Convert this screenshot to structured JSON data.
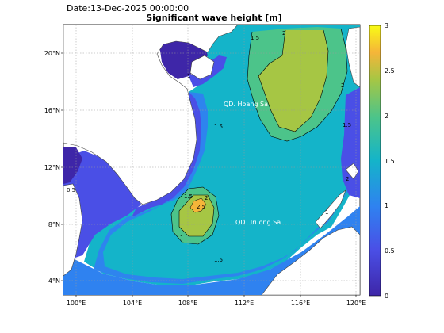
{
  "header": {
    "date": "Date:13-Dec-2025 00:00:00",
    "title": "Significant wave height [m]"
  },
  "map": {
    "lat_ticks": [
      "4°N",
      "8°N",
      "12°N",
      "16°N",
      "20°N"
    ],
    "lon_ticks": [
      "100°E",
      "104°E",
      "108°E",
      "112°E",
      "116°E",
      "120°E"
    ],
    "lon_range": [
      99,
      120.5
    ],
    "lat_range": [
      3,
      22
    ],
    "labels": {
      "hoang_sa": "QD. Hoang Sa",
      "truong_sa": "QD. Truong Sa"
    },
    "contour_labels": [
      "1.5",
      "2",
      "1",
      "2.5",
      "0.5"
    ]
  },
  "colorbar": {
    "ticks": [
      "0",
      "0.5",
      "1",
      "1.5",
      "2",
      "2.5",
      "3"
    ],
    "range": [
      0,
      3
    ],
    "colormap": "parula",
    "colors": [
      "#3e26a8",
      "#4a4fe6",
      "#2f82f0",
      "#14b4c9",
      "#4cc48a",
      "#a6c644",
      "#f5b539",
      "#f9fb15"
    ]
  }
}
